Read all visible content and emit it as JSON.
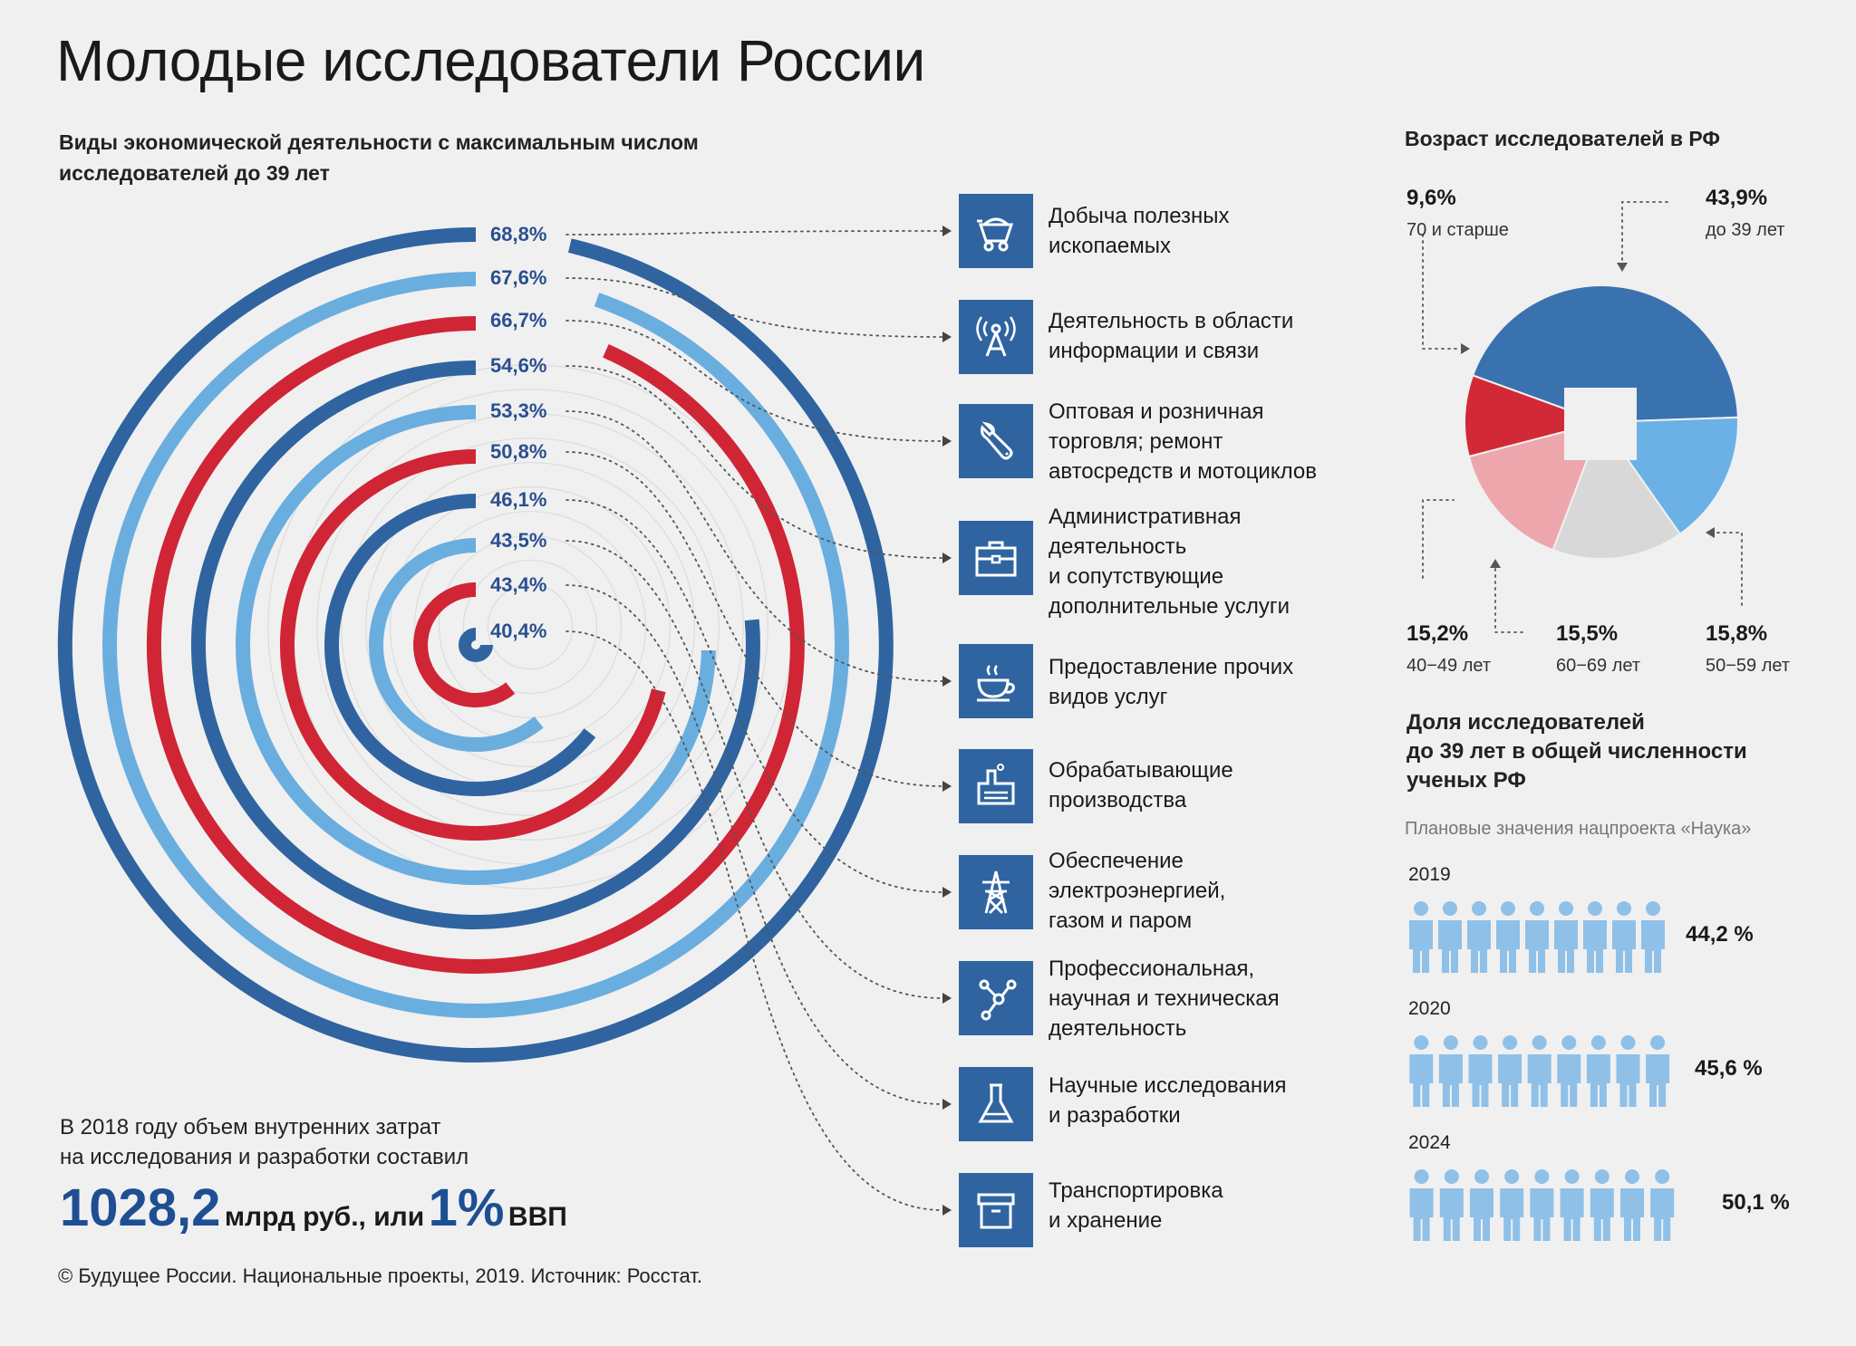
{
  "title": "Молодые исследователи России",
  "subtitle": "Виды экономической деятельности с максимальным числом исследователей до 39 лет",
  "colors": {
    "dark_blue": "#2f64a0",
    "light_blue": "#6aaee0",
    "red": "#d02535",
    "pie_blue": "#3a72b0",
    "pie_light_blue": "#6cb1e6",
    "pie_grey": "#d8d8d8",
    "pie_pink": "#eea6ad",
    "pie_red": "#d12a36",
    "person": "#8fc0e8"
  },
  "chart_data": [
    {
      "type": "bar",
      "title": "Виды экономической деятельности с максимальным числом исследователей до 39 лет",
      "unit": "%",
      "categories": [
        "Добыча полезных ископаемых",
        "Деятельность в области информации и связи",
        "Оптовая и розничная торговля; ремонт автосредств и мотоциклов",
        "Административная деятельность и сопутствующие дополнительные услуги",
        "Предоставление прочих видов услуг",
        "Обрабатывающие производства",
        "Обеспечение электроэнергией, газом и паром",
        "Профессиональная, научная и техническая деятельность",
        "Научные исследования и разработки",
        "Транспортировка и хранение"
      ],
      "values": [
        68.8,
        67.6,
        66.7,
        54.6,
        53.3,
        50.8,
        46.1,
        43.5,
        43.4,
        40.4
      ],
      "labels": [
        "68,8%",
        "67,6%",
        "66,7%",
        "54,6%",
        "53,3%",
        "50,8%",
        "46,1%",
        "43,5%",
        "43,4%",
        "40,4%"
      ],
      "colors": [
        "dark_blue",
        "light_blue",
        "red",
        "dark_blue",
        "light_blue",
        "red",
        "dark_blue",
        "light_blue",
        "red",
        "dark_blue"
      ]
    },
    {
      "type": "pie",
      "title": "Возраст исследователей в РФ",
      "slices": [
        {
          "label": "до 39 лет",
          "value": 43.9,
          "text": "43,9%",
          "color": "pie_blue"
        },
        {
          "label": "50−59 лет",
          "value": 15.8,
          "text": "15,8%",
          "color": "pie_light_blue"
        },
        {
          "label": "60−69 лет",
          "value": 15.5,
          "text": "15,5%",
          "color": "pie_grey"
        },
        {
          "label": "40−49 лет",
          "value": 15.2,
          "text": "15,2%",
          "color": "pie_pink"
        },
        {
          "label": "70 и старше",
          "value": 9.6,
          "text": "9,6%",
          "color": "pie_red"
        }
      ]
    },
    {
      "type": "pictograph",
      "title": "Доля исследователей до 39 лет в общей численности ученых РФ",
      "note": "Плановые значения нацпроекта «Наука»",
      "categories": [
        "2019",
        "2020",
        "2024"
      ],
      "values": [
        44.2,
        45.6,
        50.1
      ],
      "labels": [
        "44,2 %",
        "45,6 %",
        "50,1 %"
      ]
    }
  ],
  "categories": [
    {
      "name": "Добыча полезных ископаемых",
      "line1": "Добыча полезных",
      "line2": "ископаемых",
      "icon": "mining-cart-icon"
    },
    {
      "name": "Деятельность в области информации и связи",
      "line1": "Деятельность в области",
      "line2": "информации и связи",
      "icon": "antenna-icon"
    },
    {
      "name": "Оптовая и розничная торговля",
      "line1": "Оптовая и розничная",
      "line2": "торговля; ремонт",
      "line3": "автосредств и мотоциклов",
      "icon": "wrench-icon"
    },
    {
      "name": "Административная деятельность",
      "line1": "Административная",
      "line2": "деятельность",
      "line3": "и сопутствующие",
      "line4": "дополнительные услуги",
      "icon": "briefcase-icon"
    },
    {
      "name": "Предоставление прочих видов услуг",
      "line1": "Предоставление прочих",
      "line2": "видов услуг",
      "icon": "cup-icon"
    },
    {
      "name": "Обрабатывающие производства",
      "line1": "Обрабатывающие",
      "line2": "производства",
      "icon": "factory-icon"
    },
    {
      "name": "Обеспечение электроэнергией",
      "line1": "Обеспечение",
      "line2": "электроэнергией,",
      "line3": "газом и паром",
      "icon": "power-tower-icon"
    },
    {
      "name": "Профессиональная деятельность",
      "line1": "Профессиональная,",
      "line2": "научная и техническая",
      "line3": "деятельность",
      "icon": "molecule-icon"
    },
    {
      "name": "Научные исследования и разработки",
      "line1": "Научные исследования",
      "line2": "и разработки",
      "icon": "flask-icon"
    },
    {
      "name": "Транспортировка и хранение",
      "line1": "Транспортировка",
      "line2": "и хранение",
      "icon": "box-icon"
    }
  ],
  "age": {
    "title": "Возраст исследователей в РФ",
    "p70": "9,6%",
    "l70": "70 и старше",
    "p39": "43,9%",
    "l39": "до 39 лет",
    "p40": "15,2%",
    "l40": "40−49 лет",
    "p60": "15,5%",
    "l60": "60−69 лет",
    "p50": "15,8%",
    "l50": "50−59 лет"
  },
  "share": {
    "title_line1": "Доля исследователей",
    "title_line2": "до 39 лет в общей численности",
    "title_line3": "ученых РФ",
    "note": "Плановые значения нацпроекта «Наука»",
    "rows": [
      {
        "year": "2019",
        "value": "44,2 %"
      },
      {
        "year": "2020",
        "value": "45,6 %"
      },
      {
        "year": "2024",
        "value": "50,1 %"
      }
    ]
  },
  "spend": {
    "line1": "В 2018 году объем внутренних затрат",
    "line2": "на исследования и разработки составил",
    "amount": "1028,2",
    "amount_unit": "млрд руб., или",
    "gdp": "1%",
    "gdp_unit": "ВВП"
  },
  "source": "© Будущее России. Национальные проекты, 2019. Источник: Росстат."
}
